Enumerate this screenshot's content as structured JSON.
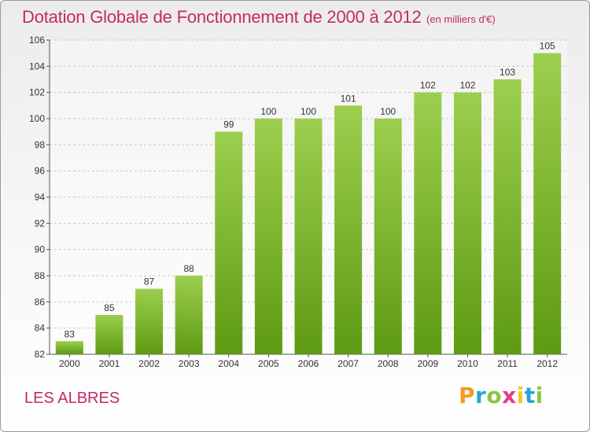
{
  "title": "Dotation Globale de Fonctionnement de 2000 à 2012",
  "unit_note": "(en milliers d'€)",
  "place": "LES ALBRES",
  "logo": {
    "text": "Proxiti",
    "letters": [
      "P",
      "r",
      "o",
      "x",
      "i",
      "t",
      "i"
    ]
  },
  "colors": {
    "bar_light": "#9ccf4e",
    "bar_dark": "#5e9a12",
    "title": "#c4296a"
  },
  "chart_data": {
    "type": "bar",
    "categories": [
      "2000",
      "2001",
      "2002",
      "2003",
      "2004",
      "2005",
      "2006",
      "2007",
      "2008",
      "2009",
      "2010",
      "2011",
      "2012"
    ],
    "values": [
      83,
      85,
      87,
      88,
      99,
      100,
      100,
      101,
      100,
      102,
      102,
      103,
      105
    ],
    "ylim": [
      82,
      106
    ],
    "yticks": [
      82,
      84,
      86,
      88,
      90,
      92,
      94,
      96,
      98,
      100,
      102,
      104,
      106
    ],
    "grid": true
  }
}
